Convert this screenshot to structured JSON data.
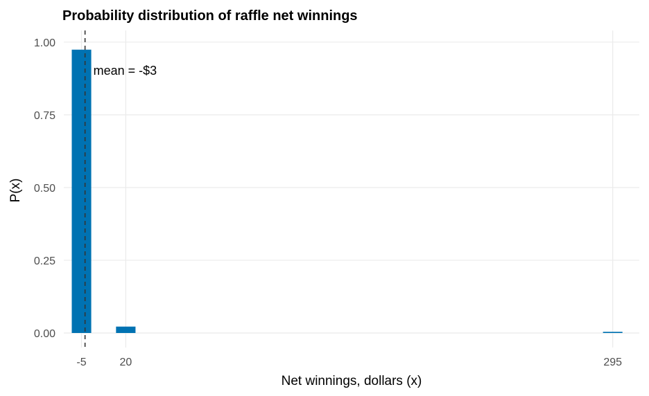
{
  "chart_data": {
    "type": "bar",
    "title": "Probability distribution of raffle net winnings",
    "xlabel": "Net winnings, dollars (x)",
    "ylabel": "P(x)",
    "x": [
      -5,
      20,
      295
    ],
    "values": [
      0.974,
      0.022,
      0.004
    ],
    "xticks": [
      -5,
      20,
      295
    ],
    "xtick_labels": [
      "-5",
      "20",
      "295"
    ],
    "yticks": [
      0,
      0.25,
      0.5,
      0.75,
      1.0
    ],
    "ytick_labels": [
      "0.00",
      "0.25",
      "0.50",
      "0.75",
      "1.00"
    ],
    "xlim": [
      -15,
      310
    ],
    "ylim": [
      -0.05,
      1.04
    ],
    "grid": true,
    "bar_color": "#0072B2",
    "mean": {
      "x": -3,
      "label": "mean = -$3",
      "line_color": "#333333"
    }
  }
}
